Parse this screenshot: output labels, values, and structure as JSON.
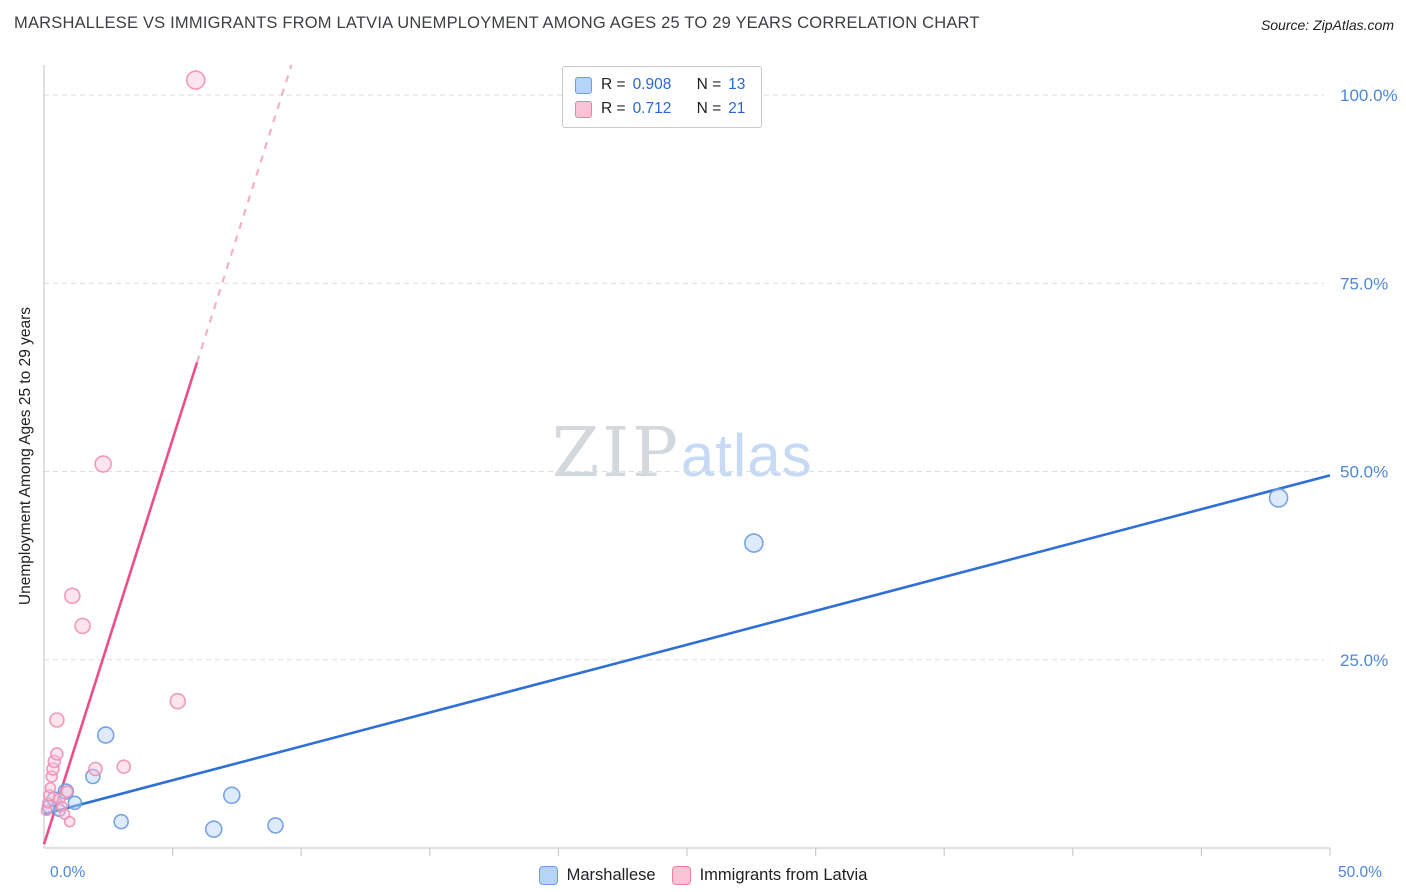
{
  "header": {
    "title": "MARSHALLESE VS IMMIGRANTS FROM LATVIA UNEMPLOYMENT AMONG AGES 25 TO 29 YEARS CORRELATION CHART",
    "source": "Source: ZipAtlas.com"
  },
  "watermark": {
    "part1": "ZIP",
    "part2": "atlas"
  },
  "legend_box": {
    "series": [
      {
        "r_label": "R =",
        "r_value": "0.908",
        "n_label": "N =",
        "n_value": "13",
        "color": "#b6d3f8",
        "border": "#6d9eeb"
      },
      {
        "r_label": "R =",
        "r_value": "0.712",
        "n_label": "N =",
        "n_value": "21",
        "color": "#fac3d6",
        "border": "#f07ca8"
      }
    ]
  },
  "bottom_legend": [
    {
      "label": "Marshallese",
      "color": "#b6d3f8",
      "border": "#6d9eeb"
    },
    {
      "label": "Immigrants from Latvia",
      "color": "#fac3d6",
      "border": "#f07ca8"
    }
  ],
  "axes": {
    "y_label": "Unemployment Among Ages 25 to 29 years",
    "y_ticks": [
      "100.0%",
      "75.0%",
      "50.0%",
      "25.0%"
    ],
    "x_tick_left": "0.0%",
    "x_tick_right": "50.0%",
    "tick_color": "#4e87d6"
  },
  "chart_data": {
    "type": "scatter",
    "title": "MARSHALLESE VS IMMIGRANTS FROM LATVIA UNEMPLOYMENT AMONG AGES 25 TO 29 YEARS CORRELATION CHART",
    "xlabel": "",
    "ylabel": "Unemployment Among Ages 25 to 29 years",
    "xlim": [
      0,
      50
    ],
    "ylim": [
      0,
      104
    ],
    "y_gridlines": [
      100,
      75,
      50,
      25
    ],
    "grid": true,
    "legend_position": "bottom",
    "series": [
      {
        "name": "Marshallese",
        "color_fill": "#b6d3f8",
        "color_stroke": "#6b9ae0",
        "points": [
          [
            0.2,
            5.5,
            6.5
          ],
          [
            0.4,
            6.5,
            7
          ],
          [
            0.6,
            5.0,
            6
          ],
          [
            0.85,
            7.5,
            7.5
          ],
          [
            1.2,
            6.0,
            6.5
          ],
          [
            1.9,
            9.5,
            7
          ],
          [
            2.4,
            15.0,
            8
          ],
          [
            3.0,
            3.5,
            7
          ],
          [
            6.6,
            2.5,
            8
          ],
          [
            7.3,
            7.0,
            8
          ],
          [
            9.0,
            3.0,
            7.5
          ],
          [
            27.6,
            40.5,
            9
          ],
          [
            48.0,
            46.5,
            9
          ]
        ],
        "trend": {
          "x1": 0,
          "y1": 4.5,
          "x2": 50,
          "y2": 49.5,
          "color": "#2e6fd8"
        }
      },
      {
        "name": "Immigrants from Latvia",
        "color_fill": "#fac3d6",
        "color_stroke": "#f08fb5",
        "points": [
          [
            0.1,
            5.0,
            5
          ],
          [
            0.15,
            6.0,
            5
          ],
          [
            0.2,
            7.0,
            5.5
          ],
          [
            0.25,
            8.0,
            5
          ],
          [
            0.3,
            9.5,
            5.5
          ],
          [
            0.35,
            10.5,
            6
          ],
          [
            0.4,
            11.5,
            6
          ],
          [
            0.5,
            12.5,
            6
          ],
          [
            0.5,
            17.0,
            7
          ],
          [
            0.6,
            6.5,
            5.5
          ],
          [
            0.7,
            5.5,
            5
          ],
          [
            0.8,
            4.5,
            5
          ],
          [
            0.9,
            7.5,
            5.5
          ],
          [
            1.0,
            3.5,
            5
          ],
          [
            1.1,
            33.5,
            7.5
          ],
          [
            1.5,
            29.5,
            7.5
          ],
          [
            2.0,
            10.5,
            6.5
          ],
          [
            2.3,
            51.0,
            8
          ],
          [
            3.1,
            10.8,
            6.5
          ],
          [
            5.2,
            19.5,
            7.5
          ],
          [
            5.9,
            102.0,
            9
          ]
        ],
        "trend": {
          "x1": 0,
          "y1": 0.5,
          "x2": 5.95,
          "y2": 64.5,
          "color": "#ec4e8a",
          "dash": {
            "x2": 9.62,
            "y2": 104
          }
        }
      }
    ]
  }
}
